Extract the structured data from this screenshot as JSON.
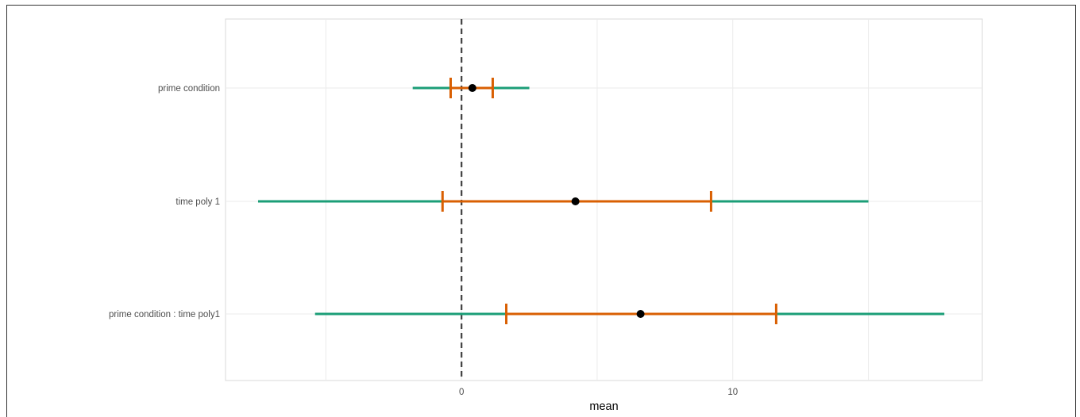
{
  "chart_data": {
    "type": "forest",
    "title": "",
    "xlabel": "mean",
    "ylabel": "",
    "xlim": [
      -8.7,
      19.2
    ],
    "x_ticks": [
      0,
      10
    ],
    "x_tick_labels": [
      "0",
      "10"
    ],
    "reference_line": 0,
    "grid": true,
    "legend": "none",
    "categories": [
      "prime condition",
      "time poly 1",
      "prime condition : time poly1"
    ],
    "estimates": [
      {
        "label": "prime condition",
        "mean": 0.4,
        "inner": [
          -0.4,
          1.15
        ],
        "outer": [
          -1.8,
          2.5
        ]
      },
      {
        "label": "time poly 1",
        "mean": 4.2,
        "inner": [
          -0.7,
          9.2
        ],
        "outer": [
          -7.5,
          15.0
        ]
      },
      {
        "label": "prime condition : time poly1",
        "mean": 6.6,
        "inner": [
          1.65,
          11.6
        ],
        "outer": [
          -5.4,
          17.8
        ]
      }
    ],
    "colors": {
      "outer_interval": "#1b9e77",
      "inner_interval": "#d95f02",
      "point": "#000000",
      "reference_line": "#404040",
      "grid": "#ebebeb",
      "panel_border": "#d9d9d9"
    }
  }
}
